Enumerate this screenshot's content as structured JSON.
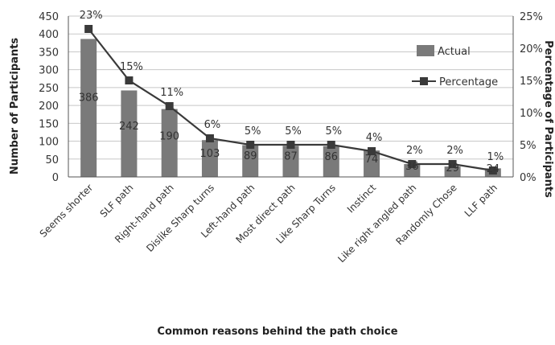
{
  "chart_data": {
    "type": "bar",
    "title": "",
    "xlabel": "Common reasons behind the path choice",
    "ylabel": "Number of Participants",
    "y2label": "Percentage of Participants",
    "ylim": [
      0,
      450
    ],
    "y2lim": [
      0,
      0.25
    ],
    "yticks": [
      "0",
      "50",
      "100",
      "150",
      "200",
      "250",
      "300",
      "350",
      "400",
      "450"
    ],
    "y2ticks": [
      "0%",
      "5%",
      "10%",
      "15%",
      "20%",
      "25%"
    ],
    "categories": [
      "Seems shorter",
      "SLF path",
      "Right-hand path",
      "Dislike Sharp turns",
      "Left-hand path",
      "Most direct path",
      "Like Sharp Turns",
      "Instinct",
      "Like right angled path",
      "Randomly Chose",
      "LLF path"
    ],
    "series": [
      {
        "name": "Actual",
        "kind": "bar",
        "axis": "left",
        "color": "#7a7a7a",
        "values": [
          386,
          242,
          190,
          103,
          89,
          87,
          86,
          74,
          36,
          29,
          24
        ],
        "labels": [
          "386",
          "242",
          "190",
          "103",
          "89",
          "87",
          "86",
          "74",
          "36",
          "29",
          "24"
        ]
      },
      {
        "name": "Percentage",
        "kind": "line",
        "axis": "right",
        "color": "#3a3a3a",
        "values": [
          0.23,
          0.15,
          0.11,
          0.06,
          0.05,
          0.05,
          0.05,
          0.04,
          0.02,
          0.02,
          0.01
        ],
        "labels": [
          "23%",
          "15%",
          "11%",
          "6%",
          "5%",
          "5%",
          "5%",
          "4%",
          "2%",
          "2%",
          "1%"
        ]
      }
    ],
    "grid": true,
    "legend": "right"
  }
}
